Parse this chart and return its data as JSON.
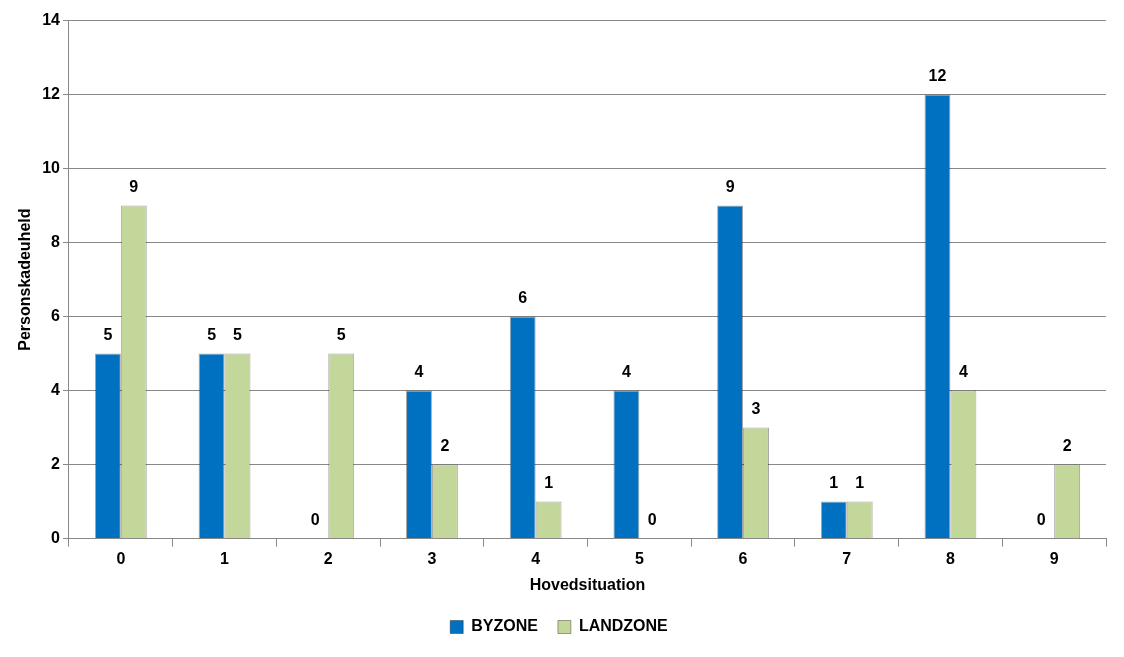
{
  "chart_data": {
    "type": "bar",
    "xlabel": "Hovedsituation",
    "ylabel": "Personskadeuheld",
    "categories": [
      "0",
      "1",
      "2",
      "3",
      "4",
      "5",
      "6",
      "7",
      "8",
      "9"
    ],
    "series": [
      {
        "name": "BYZONE",
        "color": "#0070c0",
        "values": [
          5,
          5,
          0,
          4,
          6,
          4,
          9,
          1,
          12,
          0
        ]
      },
      {
        "name": "LANDZONE",
        "color": "#c4d79b",
        "values": [
          9,
          5,
          5,
          2,
          1,
          0,
          3,
          1,
          4,
          2
        ]
      }
    ],
    "ylim": [
      0,
      14
    ],
    "yticks": [
      0,
      2,
      4,
      6,
      8,
      10,
      12,
      14
    ],
    "grid": "y",
    "legend": "bottom",
    "data_labels": true
  }
}
